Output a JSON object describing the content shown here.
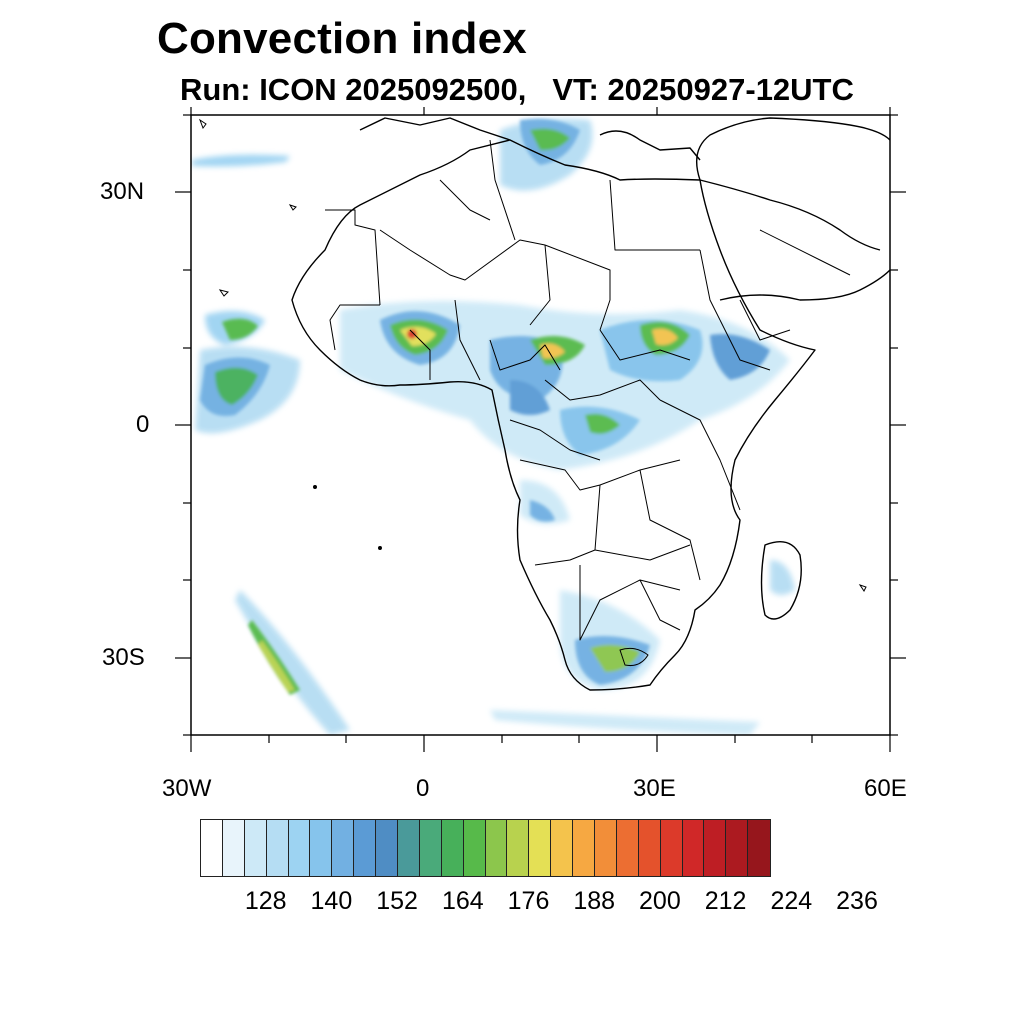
{
  "title": "Convection index",
  "subtitle": {
    "run": "Run: ICON 2025092500,",
    "vt": "VT: 20250927-12UTC"
  },
  "axes": {
    "y_labels": [
      {
        "value": 30,
        "text": "30N"
      },
      {
        "value": 0,
        "text": "0"
      },
      {
        "value": -30,
        "text": "30S"
      }
    ],
    "x_labels": [
      {
        "value": -30,
        "text": "30W"
      },
      {
        "value": 0,
        "text": "0"
      },
      {
        "value": 30,
        "text": "30E"
      },
      {
        "value": 60,
        "text": "60E"
      }
    ],
    "lon_range": [
      -30,
      60
    ],
    "lat_range": [
      -40,
      40
    ]
  },
  "colorbar": {
    "colors": [
      "#ffffff",
      "#e8f4fb",
      "#cde9f7",
      "#b5ddf3",
      "#9dd3f2",
      "#86c4ec",
      "#72b0e2",
      "#5b9bd5",
      "#4f8dc4",
      "#4a9a9a",
      "#4aaa7a",
      "#47b05a",
      "#57ba4a",
      "#8cc64c",
      "#b8d24e",
      "#e4e055",
      "#f4c34c",
      "#f6a842",
      "#f28e39",
      "#ec6e32",
      "#e4522c",
      "#dc3a2a",
      "#d02828",
      "#be1e24",
      "#ac1a20",
      "#96161c"
    ],
    "labels": [
      "128",
      "140",
      "152",
      "164",
      "176",
      "188",
      "200",
      "212",
      "224",
      "236"
    ]
  },
  "icons": {
    "map": "africa-map-icon"
  }
}
